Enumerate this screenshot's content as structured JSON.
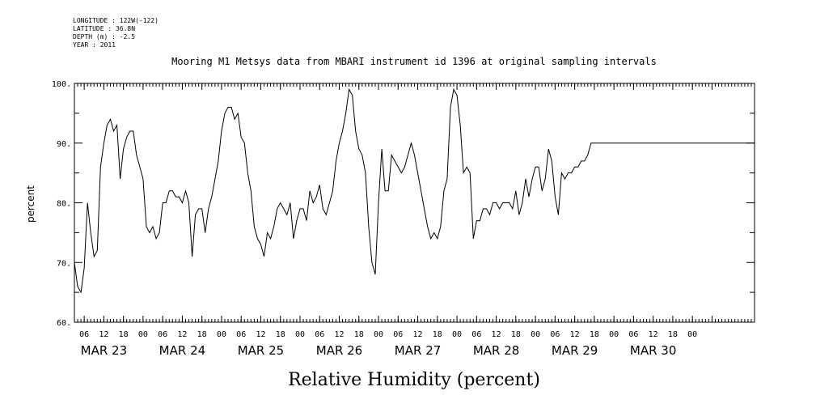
{
  "meta": {
    "longitude": "LONGITUDE : 122W(-122)",
    "latitude": "LATITUDE : 36.8N",
    "depth": "DEPTH (m) : -2.5",
    "year": "YEAR : 2011"
  },
  "chart_data": {
    "type": "line",
    "title": "Mooring M1 Metsys data from MBARI instrument id 1396 at original sampling intervals",
    "xlabel": "Relative Humidity (percent)",
    "ylabel": "percent",
    "ylim": [
      60,
      100
    ],
    "yticks": [
      "60.",
      "70.",
      "80.",
      "90.",
      "100."
    ],
    "xlim_hours_label": "hours from MAR 23 00:00",
    "xtick_hour_labels": [
      "06",
      "12",
      "18",
      "00",
      "06",
      "12",
      "18",
      "00",
      "06",
      "12",
      "18",
      "00",
      "06",
      "12",
      "18",
      "00",
      "06",
      "12",
      "18",
      "00",
      "06",
      "12",
      "18",
      "00",
      "06",
      "12",
      "18",
      "00",
      "06",
      "12",
      "18",
      "00"
    ],
    "date_labels": [
      "MAR 23",
      "MAR 24",
      "MAR 25",
      "MAR 26",
      "MAR 27",
      "MAR 28",
      "MAR 29",
      "MAR 30"
    ],
    "grid": false,
    "series": [
      {
        "x": [
          3,
          4,
          5,
          6,
          7,
          8,
          9,
          10,
          11,
          12,
          13,
          14,
          15,
          16,
          17,
          18,
          19,
          20,
          21,
          22,
          23,
          24,
          25,
          26,
          27,
          28,
          29,
          30,
          31,
          32,
          33,
          34,
          35,
          36,
          37,
          38,
          39,
          40,
          41,
          42,
          43,
          44,
          45,
          46,
          47,
          48,
          49,
          50,
          51,
          52,
          53,
          54,
          55,
          56,
          57,
          58,
          59,
          60,
          61,
          62,
          63,
          64,
          65,
          66,
          67,
          68,
          69,
          70,
          71,
          72,
          73,
          74,
          75,
          76,
          77,
          78,
          79,
          80,
          81,
          82,
          83,
          84,
          85,
          86,
          87,
          88,
          89,
          90,
          91,
          92,
          93,
          94,
          95,
          96,
          97,
          98,
          99,
          100,
          101,
          102,
          103,
          104,
          105,
          106,
          107,
          108,
          109,
          110,
          111,
          112,
          113,
          114,
          115,
          116,
          117,
          118,
          119,
          120,
          121,
          122,
          123,
          124,
          125,
          126,
          127,
          128,
          129,
          130,
          131,
          132,
          133,
          134,
          135,
          136,
          137,
          138,
          139,
          140,
          141,
          142,
          143,
          144,
          145,
          146,
          147,
          148,
          149,
          150,
          151,
          152,
          153,
          154,
          155,
          156,
          157,
          158,
          159,
          160,
          161,
          162,
          163,
          164,
          165,
          166,
          167,
          168,
          169,
          170,
          171,
          172,
          173,
          174,
          175,
          176,
          177,
          178,
          179,
          180,
          181,
          182,
          183,
          184,
          185,
          186,
          187,
          188,
          189,
          190,
          191,
          192,
          193,
          194,
          195,
          196,
          197,
          198,
          199,
          200,
          201,
          202,
          203,
          204,
          205,
          206,
          207,
          208,
          209,
          210,
          211
        ],
        "values": [
          70,
          66,
          65,
          69,
          80,
          75,
          71,
          72,
          86,
          90,
          93,
          94,
          92,
          93,
          84,
          89,
          91,
          92,
          92,
          88,
          86,
          84,
          76,
          75,
          76,
          74,
          75,
          80,
          80,
          82,
          82,
          81,
          81,
          80,
          82,
          80,
          71,
          78,
          79,
          79,
          75,
          79,
          81,
          84,
          87,
          92,
          95,
          96,
          96,
          94,
          95,
          91,
          90,
          85,
          82,
          76,
          74,
          73,
          71,
          75,
          74,
          76,
          79,
          80,
          79,
          78,
          80,
          74,
          77,
          79,
          79,
          77,
          82,
          80,
          81,
          83,
          79,
          78,
          80,
          82,
          87,
          90,
          92,
          95,
          99,
          98,
          92,
          89,
          88,
          85,
          76,
          70,
          68,
          80,
          89,
          82,
          82,
          88,
          87,
          86,
          85,
          86,
          88,
          90,
          88,
          85,
          82,
          79,
          76,
          74,
          75,
          74,
          76,
          82,
          84,
          96,
          99,
          98,
          93,
          85,
          86,
          85,
          74,
          77,
          77,
          79,
          79,
          78,
          80,
          80,
          79,
          80,
          80,
          80,
          79,
          82,
          78,
          80,
          84,
          81,
          84,
          86,
          86,
          82,
          84,
          89,
          87,
          81,
          78,
          85,
          84,
          85,
          85,
          86,
          86,
          87,
          87,
          88,
          90,
          90,
          90,
          90,
          90,
          90,
          90,
          90,
          90,
          90,
          90,
          90,
          90,
          90,
          90,
          90,
          90,
          90,
          90,
          90,
          90,
          90,
          90,
          90,
          90,
          90,
          90,
          90,
          90,
          90,
          90,
          90,
          90,
          90,
          90,
          90,
          90,
          90,
          90,
          90,
          90,
          90,
          90,
          90,
          90,
          90,
          90,
          90,
          90,
          90,
          90
        ]
      }
    ]
  }
}
